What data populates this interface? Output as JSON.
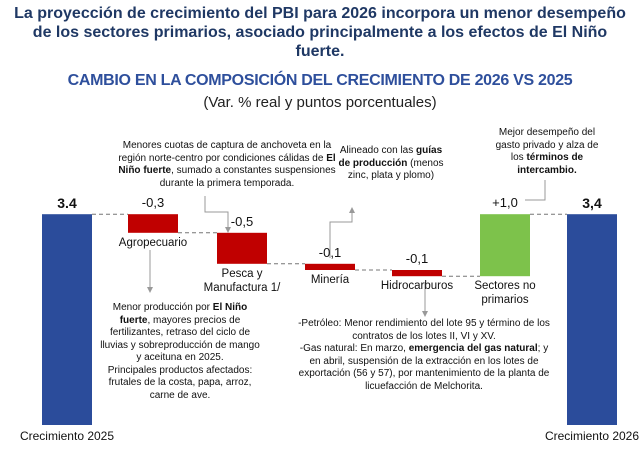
{
  "header": {
    "title": "La proyección de crecimiento del PBI para 2026 incorpora un menor desempeño de los sectores primarios, asociado principalmente a los efectos de El Niño fuerte."
  },
  "chart_data": {
    "type": "waterfall",
    "title": "CAMBIO EN LA COMPOSICIÓN DEL CRECIMIENTO DE 2026 VS 2025",
    "subtitle": "(Var. % real y puntos porcentuales)",
    "categories": [
      "Crecimiento 2025",
      "Agropecuario",
      "Pesca y Manufactura 1/",
      "Minería",
      "Hidrocarburos",
      "Sectores no primarios",
      "Crecimiento 2026"
    ],
    "values": [
      3.4,
      -0.3,
      -0.5,
      -0.1,
      -0.1,
      1.0,
      3.4
    ],
    "value_labels": [
      "3.4",
      "-0,3",
      "-0,5",
      "-0,1",
      "-0,1",
      "+1,0",
      "3,4"
    ],
    "totals": [
      true,
      false,
      false,
      false,
      false,
      false,
      true
    ],
    "color_total": "#2b4c9b",
    "color_decrease": "#c00000",
    "color_increase": "#7dc24b",
    "annotations": [
      {
        "paragraphs": [
          [
            {
              "text": "Menores cuotas de captura de anchoveta en la región norte-centro por condiciones cálidas de "
            },
            {
              "text": "El Niño fuerte",
              "bold": true
            },
            {
              "text": ", sumado a constantes suspensiones durante la primera temporada."
            }
          ]
        ]
      },
      {
        "paragraphs": [
          [
            {
              "text": "Menor producción por "
            },
            {
              "text": "El Niño fuerte",
              "bold": true
            },
            {
              "text": ", mayores precios de fertilizantes, retraso del ciclo de lluvias y sobreproducción de mango y aceituna en 2025."
            }
          ],
          [
            {
              "text": "Principales productos afectados: frutales de la costa, papa, arroz, carne de ave."
            }
          ]
        ]
      },
      {
        "paragraphs": [
          [
            {
              "text": "Alineado con las "
            },
            {
              "text": "guías de producción",
              "bold": true
            },
            {
              "text": " (menos zinc, plata y plomo)"
            }
          ]
        ]
      },
      {
        "paragraphs": [
          [
            {
              "text": "-Petróleo: Menor rendimiento del lote 95 y término de los contratos de los lotes II, VI y XV."
            }
          ],
          [
            {
              "text": "-Gas natural: En marzo, "
            },
            {
              "text": "emergencia del gas natural",
              "bold": true
            },
            {
              "text": "; y en abril, suspensión de la extracción en los lotes de exportación (56 y 57), por mantenimiento de la planta de licuefacción de Melchorita."
            }
          ]
        ]
      },
      {
        "paragraphs": [
          [
            {
              "text": "Mejor desempeño del gasto privado y alza de los "
            },
            {
              "text": "términos de intercambio.",
              "bold": true
            }
          ]
        ]
      }
    ]
  }
}
